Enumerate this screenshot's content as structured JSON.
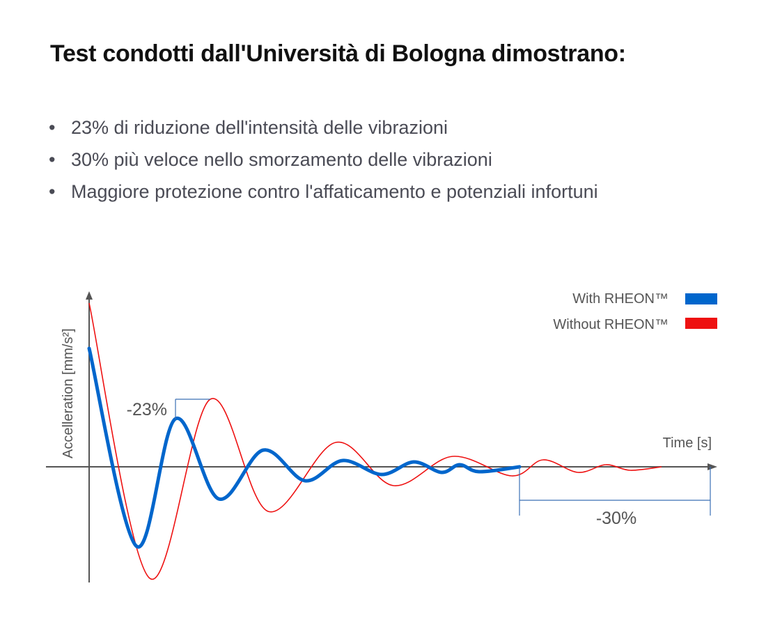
{
  "title": "Test condotti dall'Università di Bologna dimostrano:",
  "bullets": [
    "23% di riduzione dell'intensità delle vibrazioni",
    "30% più veloce nello smorzamento delle vibrazioni",
    "Maggiore protezione contro l'affaticamento e potenziali infortuni"
  ],
  "colors": {
    "with": "#0066cc",
    "without": "#ee1111",
    "axis": "#555555",
    "annotation": "#3a6fb5"
  },
  "chart_data": {
    "type": "line",
    "xlabel": "Time [s]",
    "ylabel": "Accelleration [mm/s²]",
    "legend_position": "top-right",
    "series": [
      {
        "name": "With RHEON™",
        "color": "#0066cc",
        "amplitude_peak_label_ratio": 0.77
      },
      {
        "name": "Without RHEON™",
        "color": "#ee1111"
      }
    ],
    "annotations": [
      {
        "text": "-23%",
        "meaning": "peak acceleration reduction"
      },
      {
        "text": "-30%",
        "meaning": "faster damping time"
      }
    ]
  }
}
